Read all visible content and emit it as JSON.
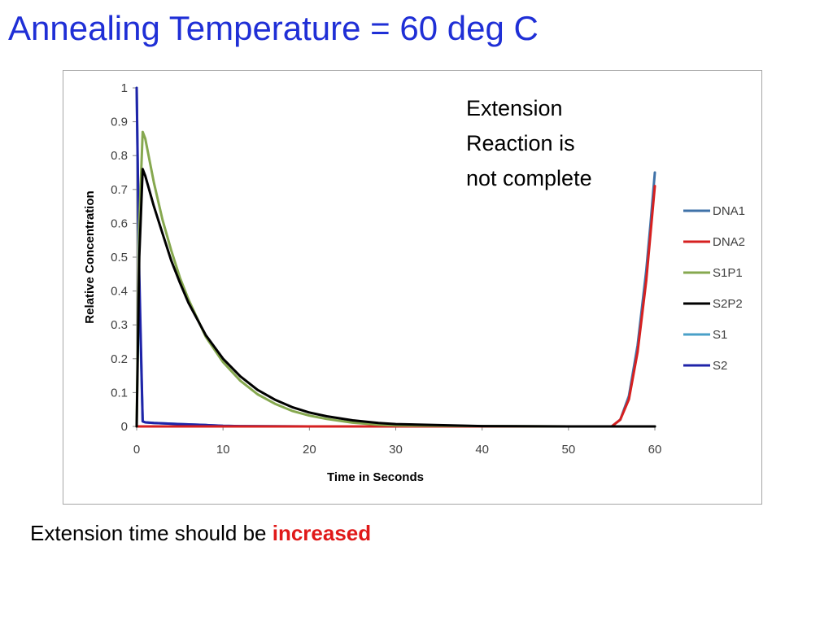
{
  "slide": {
    "title": "Annealing Temperature = 60 deg C",
    "annotation_lines": [
      "Extension",
      "Reaction is",
      "not complete"
    ],
    "footer_prefix": "Extension time should be ",
    "footer_emphasis": "increased",
    "title_color": "#1f2fd6",
    "emphasis_color": "#e01919"
  },
  "chart_data": {
    "type": "line",
    "title": "",
    "xlabel": "Time in Seconds",
    "ylabel": "Relative Concentration",
    "xlim": [
      0,
      60
    ],
    "ylim": [
      0,
      1
    ],
    "x_ticks": [
      0,
      10,
      20,
      30,
      40,
      50,
      60
    ],
    "y_ticks": [
      0,
      0.1,
      0.2,
      0.3,
      0.4,
      0.5,
      0.6,
      0.7,
      0.8,
      0.9,
      1
    ],
    "grid": false,
    "legend_position": "right",
    "series": [
      {
        "name": "DNA1",
        "color": "#3f72a8",
        "x": [
          0,
          10,
          20,
          30,
          40,
          50,
          55,
          56,
          57,
          58,
          59,
          59.5,
          60
        ],
        "y": [
          0,
          0,
          0,
          0,
          0,
          0,
          0.0,
          0.02,
          0.09,
          0.24,
          0.46,
          0.6,
          0.75
        ]
      },
      {
        "name": "DNA2",
        "color": "#d62020",
        "x": [
          0,
          10,
          20,
          30,
          40,
          50,
          55,
          56,
          57,
          58,
          59,
          59.5,
          60
        ],
        "y": [
          0,
          0,
          0,
          0,
          0,
          0,
          0.0,
          0.02,
          0.08,
          0.22,
          0.43,
          0.57,
          0.71
        ]
      },
      {
        "name": "S1P1",
        "color": "#86a84f",
        "x": [
          0,
          0.3,
          0.7,
          1,
          2,
          3,
          4,
          5,
          6,
          8,
          10,
          12,
          14,
          16,
          18,
          20,
          22,
          25,
          28,
          30,
          40,
          50,
          60
        ],
        "y": [
          0,
          0.6,
          0.87,
          0.85,
          0.72,
          0.61,
          0.52,
          0.44,
          0.375,
          0.265,
          0.19,
          0.135,
          0.095,
          0.067,
          0.046,
          0.032,
          0.022,
          0.011,
          0.005,
          0.003,
          0.001,
          0,
          0
        ]
      },
      {
        "name": "S2P2",
        "color": "#000000",
        "x": [
          0,
          0.3,
          0.7,
          1,
          2,
          3,
          4,
          5,
          6,
          8,
          10,
          12,
          14,
          16,
          18,
          20,
          22,
          25,
          28,
          30,
          40,
          50,
          60
        ],
        "y": [
          0,
          0.5,
          0.76,
          0.74,
          0.65,
          0.57,
          0.49,
          0.425,
          0.365,
          0.27,
          0.2,
          0.148,
          0.108,
          0.079,
          0.057,
          0.041,
          0.03,
          0.018,
          0.01,
          0.007,
          0.001,
          0,
          0
        ]
      },
      {
        "name": "S1",
        "color": "#4aa0c8",
        "x": [
          0,
          0.3,
          0.7,
          1,
          2,
          5,
          8,
          10,
          12,
          20,
          30,
          40,
          50,
          55,
          60
        ],
        "y": [
          1,
          0.4,
          0.015,
          0.012,
          0.01,
          0.007,
          0.004,
          0.002,
          0.001,
          0,
          0,
          0,
          0,
          0,
          0
        ]
      },
      {
        "name": "S2",
        "color": "#1f23a8",
        "x": [
          0,
          0.3,
          0.7,
          1,
          2,
          5,
          8,
          10,
          12,
          20,
          30,
          40,
          50,
          55,
          60
        ],
        "y": [
          1,
          0.45,
          0.015,
          0.012,
          0.01,
          0.007,
          0.004,
          0.002,
          0.001,
          0,
          0,
          0,
          0,
          0,
          0
        ]
      }
    ]
  }
}
